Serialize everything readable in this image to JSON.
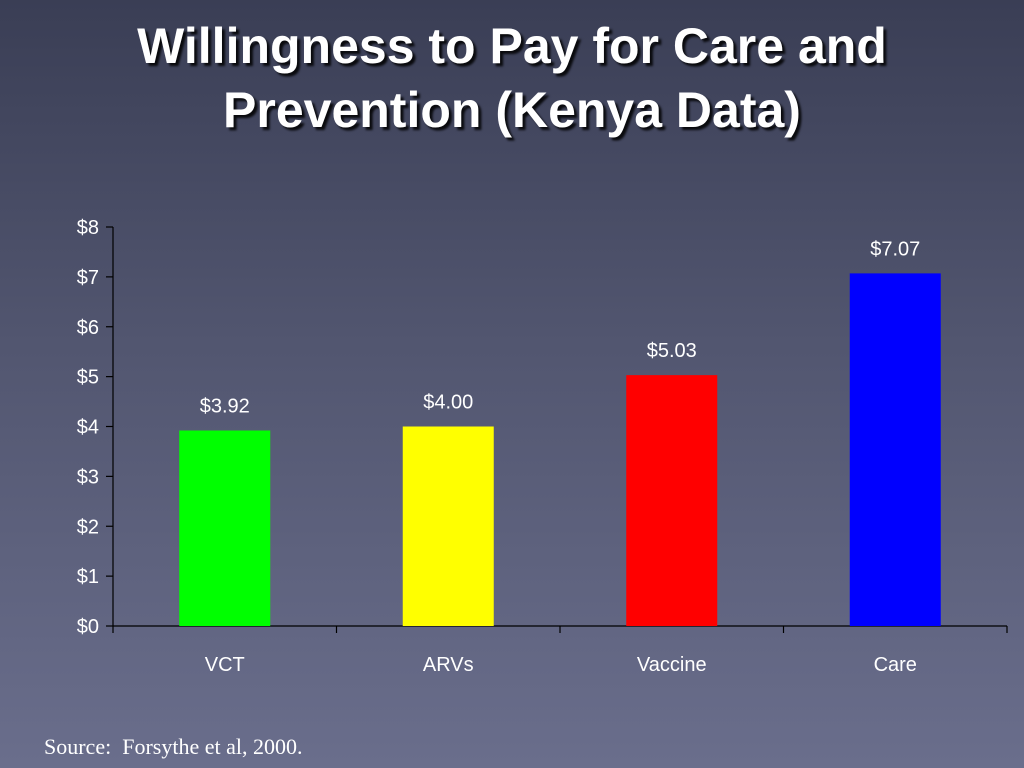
{
  "slide": {
    "title_line1": "Willingness to Pay for Care and",
    "title_line2": "Prevention (Kenya Data)",
    "source": "Source:  Forsythe et al, 2000."
  },
  "chart_data": {
    "type": "bar",
    "categories": [
      "VCT",
      "ARVs",
      "Vaccine",
      "Care"
    ],
    "values": [
      3.92,
      4.0,
      5.03,
      7.07
    ],
    "data_labels": [
      "$3.92",
      "$4.00",
      "$5.03",
      "$7.07"
    ],
    "colors": [
      "#00ff00",
      "#ffff00",
      "#ff0000",
      "#0000ff"
    ],
    "yticks": [
      0,
      1,
      2,
      3,
      4,
      5,
      6,
      7,
      8
    ],
    "ytick_labels": [
      "$0",
      "$1",
      "$2",
      "$3",
      "$4",
      "$5",
      "$6",
      "$7",
      "$8"
    ],
    "ylim": [
      0,
      8
    ],
    "title": "",
    "xlabel": "",
    "ylabel": "",
    "grid": false,
    "legend": "none"
  }
}
